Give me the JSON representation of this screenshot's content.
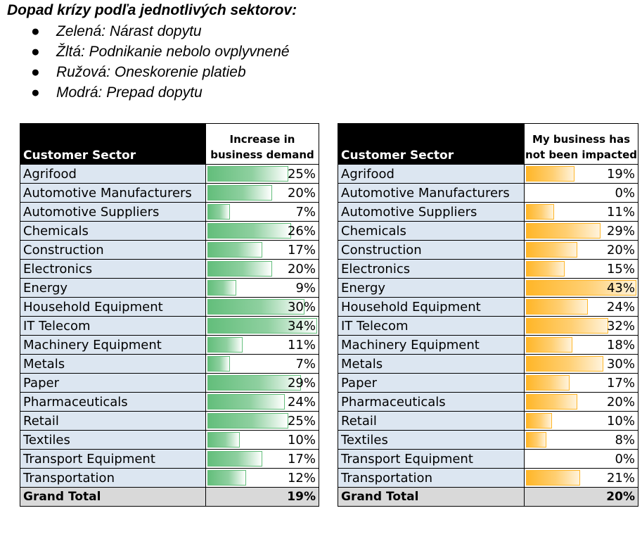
{
  "heading": "Dopad krízy podľa jednotlivých sektorov:",
  "legend": [
    "Zelená: Nárast dopytu",
    "Žltá: Podnikanie nebolo ovplyvnené",
    "Ružová: Oneskorenie platieb",
    "Modrá: Prepad dopytu"
  ],
  "colors": {
    "sector_fill": "#dce6f1",
    "header_fill": "#000000",
    "total_fill": "#d9d9d9",
    "green_bar": "#63be7b",
    "orange_bar": "#ffb628"
  },
  "tables": [
    {
      "sector_header": "Customer Sector",
      "metric_header": "Increase in business demand",
      "bar_color": "green",
      "bar_max": 34,
      "rows": [
        {
          "sector": "Agrifood",
          "value": 25,
          "label": "25%"
        },
        {
          "sector": "Automotive Manufacturers",
          "value": 20,
          "label": "20%"
        },
        {
          "sector": "Automotive Suppliers",
          "value": 7,
          "label": "7%"
        },
        {
          "sector": "Chemicals",
          "value": 26,
          "label": "26%"
        },
        {
          "sector": "Construction",
          "value": 17,
          "label": "17%"
        },
        {
          "sector": "Electronics",
          "value": 20,
          "label": "20%"
        },
        {
          "sector": "Energy",
          "value": 9,
          "label": "9%"
        },
        {
          "sector": "Household Equipment",
          "value": 30,
          "label": "30%"
        },
        {
          "sector": "IT Telecom",
          "value": 34,
          "label": "34%"
        },
        {
          "sector": "Machinery Equipment",
          "value": 11,
          "label": "11%"
        },
        {
          "sector": "Metals",
          "value": 7,
          "label": "7%"
        },
        {
          "sector": "Paper",
          "value": 29,
          "label": "29%"
        },
        {
          "sector": "Pharmaceuticals",
          "value": 24,
          "label": "24%"
        },
        {
          "sector": "Retail",
          "value": 25,
          "label": "25%"
        },
        {
          "sector": "Textiles",
          "value": 10,
          "label": "10%"
        },
        {
          "sector": "Transport Equipment",
          "value": 17,
          "label": "17%"
        },
        {
          "sector": "Transportation",
          "value": 12,
          "label": "12%"
        }
      ],
      "total_label": "Grand Total",
      "total_value": "19%"
    },
    {
      "sector_header": "Customer Sector",
      "metric_header": "My business has not been impacted",
      "bar_color": "orange",
      "bar_max": 43,
      "rows": [
        {
          "sector": "Agrifood",
          "value": 19,
          "label": "19%"
        },
        {
          "sector": "Automotive Manufacturers",
          "value": 0,
          "label": "0%"
        },
        {
          "sector": "Automotive Suppliers",
          "value": 11,
          "label": "11%"
        },
        {
          "sector": "Chemicals",
          "value": 29,
          "label": "29%"
        },
        {
          "sector": "Construction",
          "value": 20,
          "label": "20%"
        },
        {
          "sector": "Electronics",
          "value": 15,
          "label": "15%"
        },
        {
          "sector": "Energy",
          "value": 43,
          "label": "43%"
        },
        {
          "sector": "Household Equipment",
          "value": 24,
          "label": "24%"
        },
        {
          "sector": "IT Telecom",
          "value": 32,
          "label": "32%"
        },
        {
          "sector": "Machinery Equipment",
          "value": 18,
          "label": "18%"
        },
        {
          "sector": "Metals",
          "value": 30,
          "label": "30%"
        },
        {
          "sector": "Paper",
          "value": 17,
          "label": "17%"
        },
        {
          "sector": "Pharmaceuticals",
          "value": 20,
          "label": "20%"
        },
        {
          "sector": "Retail",
          "value": 10,
          "label": "10%"
        },
        {
          "sector": "Textiles",
          "value": 8,
          "label": "8%"
        },
        {
          "sector": "Transport Equipment",
          "value": 0,
          "label": "0%"
        },
        {
          "sector": "Transportation",
          "value": 21,
          "label": "21%"
        }
      ],
      "total_label": "Grand Total",
      "total_value": "20%"
    }
  ]
}
